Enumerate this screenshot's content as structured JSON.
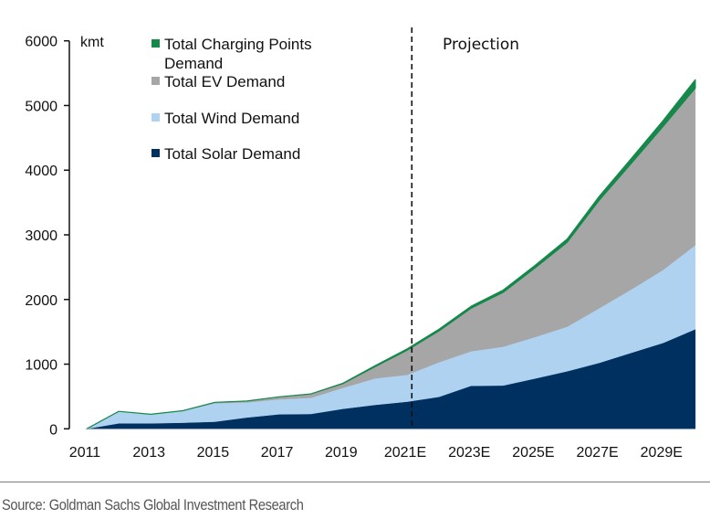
{
  "chart_data": {
    "type": "area",
    "stacked": true,
    "title": "",
    "xlabel": "",
    "ylabel": "kmt",
    "ylim": [
      0,
      6000
    ],
    "yticks": [
      0,
      1000,
      2000,
      3000,
      4000,
      5000,
      6000
    ],
    "x": [
      "2011",
      "2012",
      "2013",
      "2014",
      "2015",
      "2016",
      "2017",
      "2018",
      "2019",
      "2020",
      "2021E",
      "2022E",
      "2023E",
      "2024E",
      "2025E",
      "2026E",
      "2027E",
      "2028E",
      "2029E",
      "2030E"
    ],
    "xtick_labels": [
      "2011",
      "2013",
      "2015",
      "2017",
      "2019",
      "2021E",
      "2023E",
      "2025E",
      "2027E",
      "2029E"
    ],
    "grid": false,
    "legend_position": "top-left",
    "series": [
      {
        "name": "Total Solar Demand",
        "color": "#003060",
        "values": [
          0,
          85,
          85,
          95,
          110,
          175,
          225,
          230,
          310,
          370,
          420,
          495,
          665,
          670,
          778,
          890,
          1020,
          1175,
          1330,
          1540
        ]
      },
      {
        "name": "Total Wind Demand",
        "color": "#aed2ef",
        "values": [
          0,
          185,
          140,
          185,
          285,
          235,
          232,
          250,
          325,
          410,
          415,
          535,
          535,
          600,
          642,
          690,
          845,
          980,
          1130,
          1300
        ]
      },
      {
        "name": "Total EV Demand",
        "color": "#a6a6a6",
        "values": [
          0,
          0,
          0,
          0,
          15,
          20,
          38,
          60,
          65,
          180,
          380,
          485,
          665,
          840,
          1070,
          1305,
          1670,
          1950,
          2220,
          2430
        ]
      },
      {
        "name": "Total Charging Points Demand",
        "color": "#15884a",
        "values": [
          0,
          0,
          0,
          0,
          0,
          0,
          0,
          0,
          5,
          15,
          20,
          25,
          30,
          35,
          40,
          50,
          60,
          75,
          90,
          130
        ]
      }
    ],
    "legend_order": [
      "Total Charging Points Demand",
      "Total EV Demand",
      "Total Wind Demand",
      "Total Solar Demand"
    ],
    "annotations": [
      {
        "type": "vline",
        "style": "dashed",
        "x_value": 2021.15,
        "label": "Projection"
      }
    ]
  },
  "legend": {
    "items": [
      {
        "lines": [
          "Total Charging Points",
          "Demand"
        ],
        "color": "#15884a"
      },
      {
        "lines": [
          "Total EV Demand"
        ],
        "color": "#a6a6a6"
      },
      {
        "lines": [
          "Total Wind Demand"
        ],
        "color": "#aed2ef"
      },
      {
        "lines": [
          "Total Solar Demand"
        ],
        "color": "#003060"
      }
    ]
  },
  "unit_label": "kmt",
  "projection_label": "Projection",
  "source": "Source: Goldman Sachs Global Investment Research"
}
